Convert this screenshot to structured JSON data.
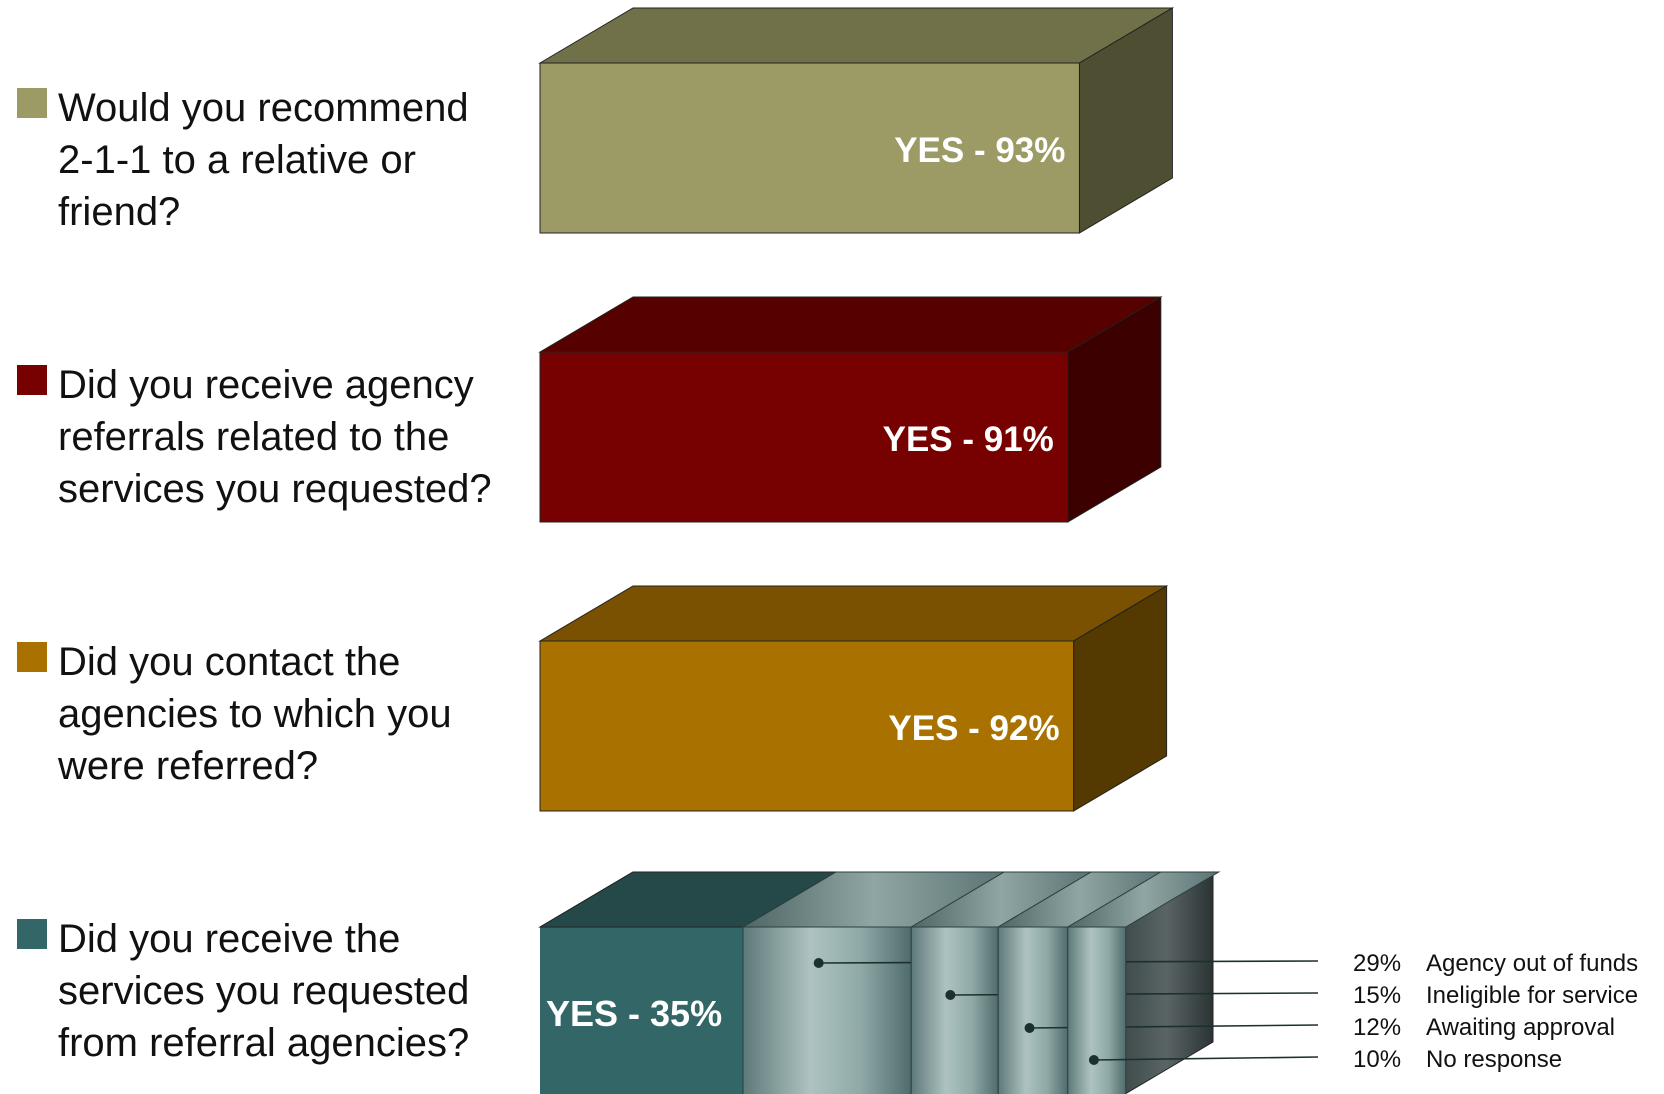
{
  "chart_data": {
    "type": "bar",
    "questions": [
      {
        "text": "Would you recommend 2-1-1 to a relative or friend?",
        "value": 93,
        "label": "YES - 93%",
        "color": "#9C9B66"
      },
      {
        "text": "Did you receive agency referrals related to the services you requested?",
        "value": 91,
        "label": "YES - 91%",
        "color": "#770000"
      },
      {
        "text": "Did you contact the agencies to which you were referred?",
        "value": 92,
        "label": "YES - 92%",
        "color": "#A87100"
      },
      {
        "text": "Did you receive the services you requested from referral agencies?",
        "value": 35,
        "label": "YES - 35%",
        "color": "#336666"
      }
    ],
    "no_breakdown": [
      {
        "pct": "29%",
        "reason": "Agency out of funds",
        "value": 29
      },
      {
        "pct": "15%",
        "reason": "Ineligible for service",
        "value": 15
      },
      {
        "pct": "12%",
        "reason": "Awaiting approval",
        "value": 12
      },
      {
        "pct": "10%",
        "reason": "No response",
        "value": 10
      }
    ]
  }
}
